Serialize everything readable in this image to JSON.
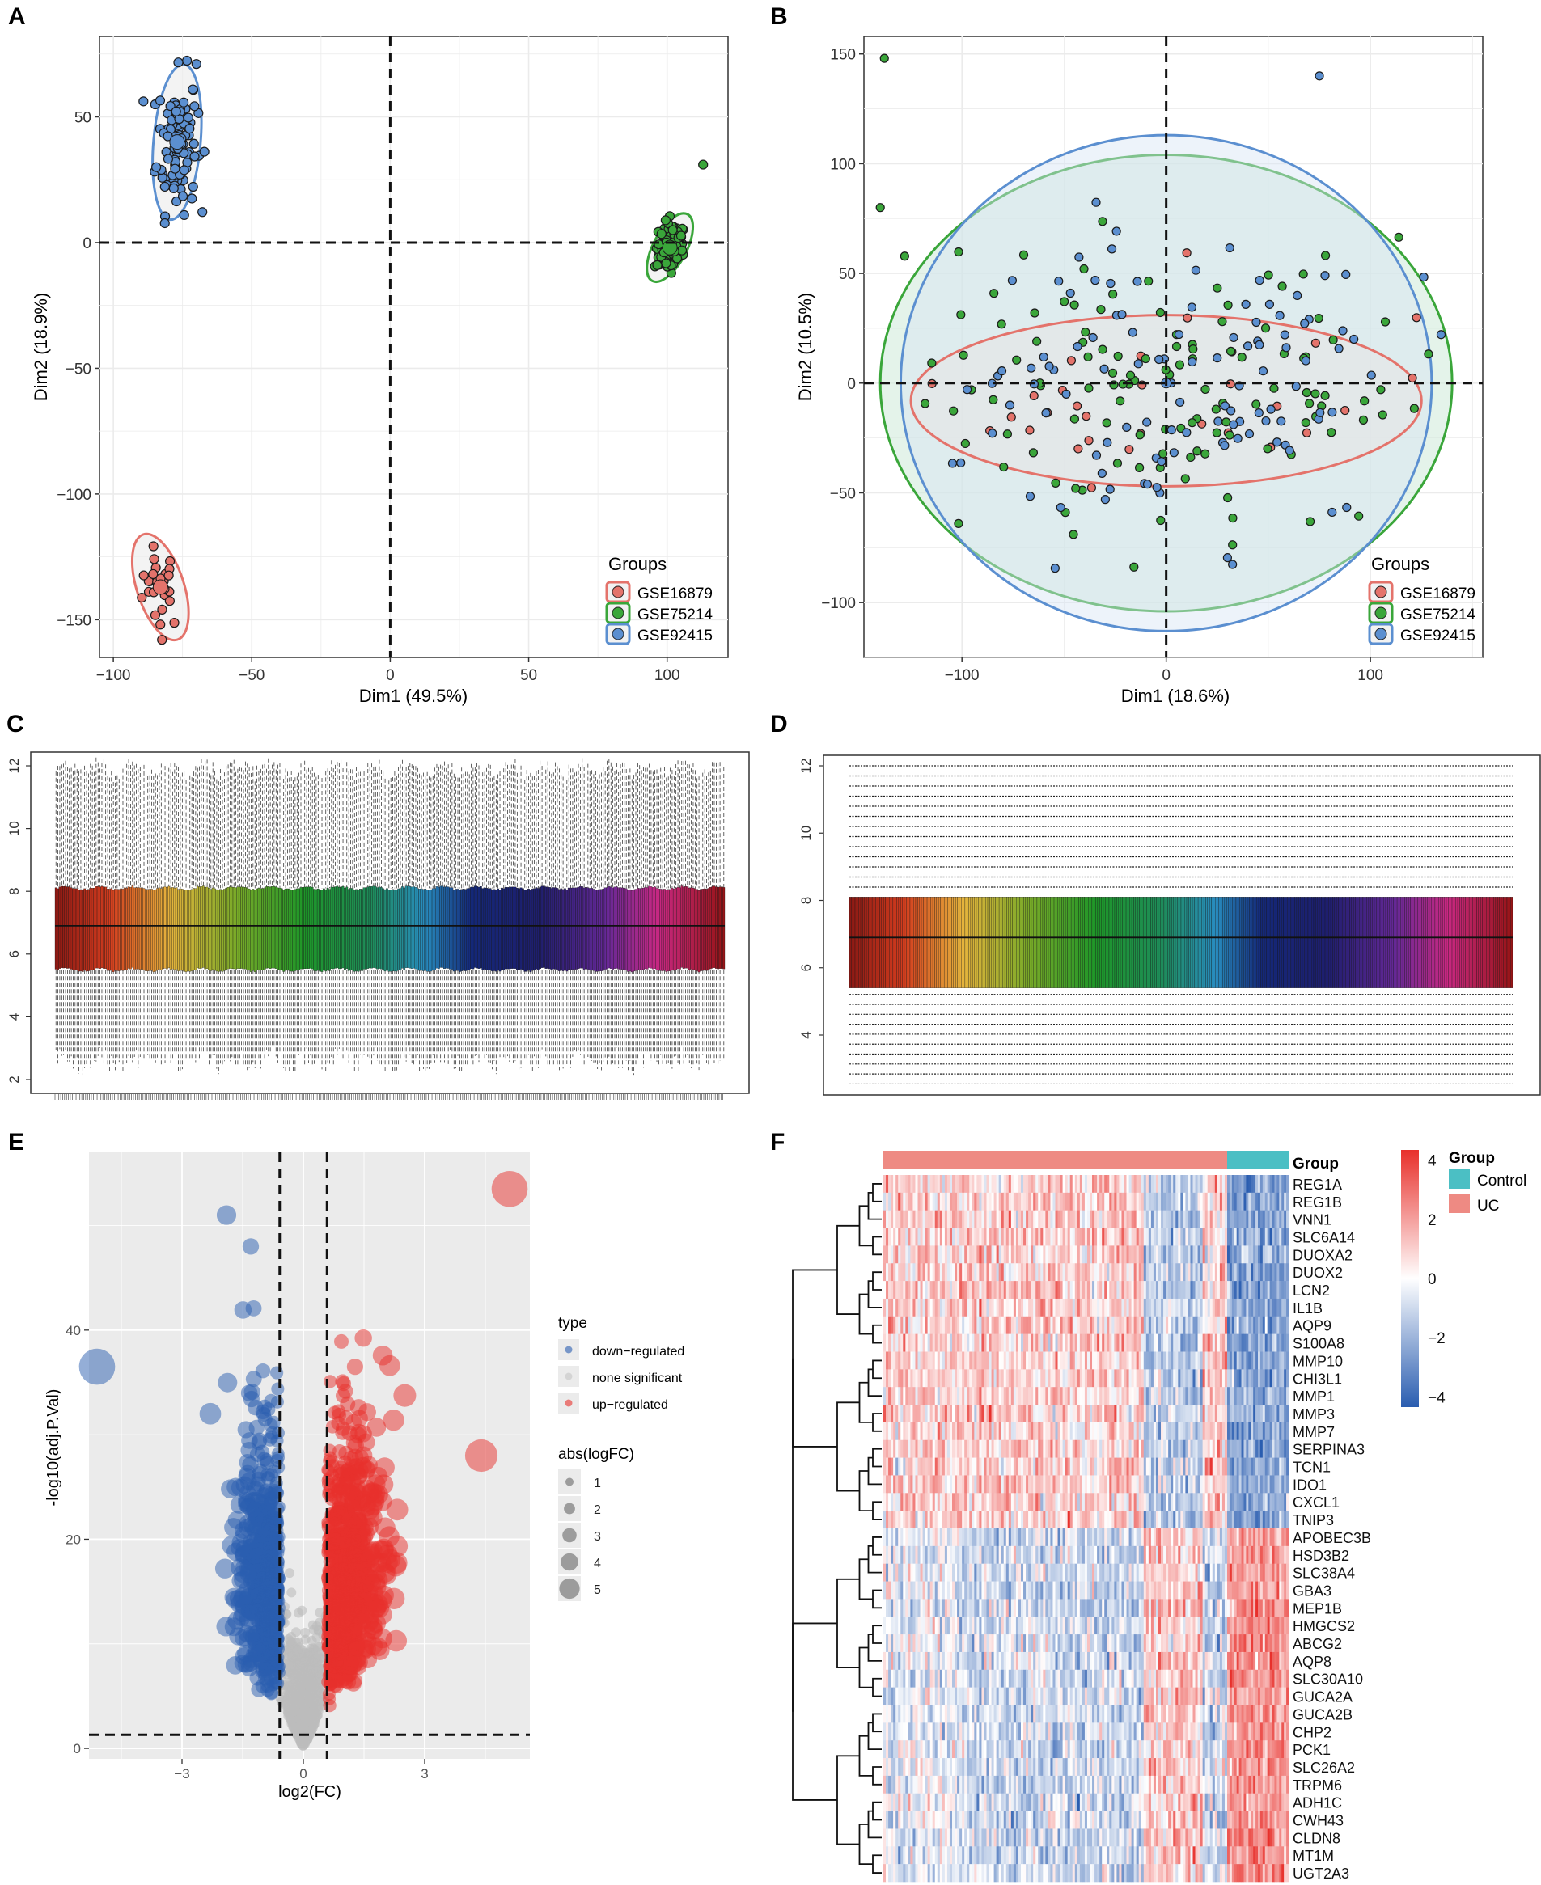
{
  "panels": {
    "A": {
      "letter": "A",
      "xlabel": "Dim1 (49.5%)",
      "ylabel": "Dim2 (18.9%)"
    },
    "B": {
      "letter": "B",
      "xlabel": "Dim1 (18.6%)",
      "ylabel": "Dim2 (10.5%)"
    },
    "C": {
      "letter": "C"
    },
    "D": {
      "letter": "D"
    },
    "E": {
      "letter": "E",
      "xlabel": "log2(FC)",
      "ylabel": "-log10(adj.P.Val)"
    },
    "F": {
      "letter": "F"
    }
  },
  "groups_legend": {
    "title": "Groups",
    "items": [
      "GSE16879",
      "GSE75214",
      "GSE92415"
    ]
  },
  "colors": {
    "GSE16879": "#e4736b",
    "GSE75214": "#3aa63a",
    "GSE92415": "#5b8fd0",
    "down": "#2a5db0",
    "none": "#bdbdbd",
    "up": "#e8302b",
    "control": "#4bbfc4",
    "uc": "#ee8a83",
    "hm_high": "#e8302b",
    "hm_mid": "#ffffff",
    "hm_low": "#2a5db0"
  },
  "chart_data": [
    {
      "id": "A",
      "type": "scatter",
      "title": "",
      "xlabel": "Dim1 (49.5%)",
      "ylabel": "Dim2 (18.9%)",
      "xlim": [
        -105,
        122
      ],
      "ylim": [
        -165,
        82
      ],
      "xticks": [
        -100,
        -50,
        0,
        50,
        100
      ],
      "yticks": [
        50,
        0,
        -50,
        -100,
        -150
      ],
      "series": [
        {
          "name": "GSE16879",
          "centroid": [
            -83,
            -137
          ],
          "spread": [
            4,
            8
          ],
          "n": 28
        },
        {
          "name": "GSE75214",
          "centroid": [
            101,
            -2
          ],
          "spread": [
            3,
            5
          ],
          "n": 90
        },
        {
          "name": "GSE92415",
          "centroid": [
            -77,
            40
          ],
          "spread": [
            4,
            14
          ],
          "n": 110
        }
      ]
    },
    {
      "id": "B",
      "type": "scatter",
      "xlabel": "Dim1 (18.6%)",
      "ylabel": "Dim2 (10.5%)",
      "xlim": [
        -148,
        155
      ],
      "ylim": [
        -125,
        158
      ],
      "xticks": [
        -100,
        0,
        100
      ],
      "yticks": [
        150,
        100,
        50,
        0,
        -50,
        -100
      ],
      "series": [
        {
          "name": "GSE16879",
          "centroid": [
            0,
            0
          ],
          "spread": [
            60,
            20
          ],
          "n": 30
        },
        {
          "name": "GSE75214",
          "centroid": [
            0,
            0
          ],
          "spread": [
            55,
            35
          ],
          "n": 120
        },
        {
          "name": "GSE92415",
          "centroid": [
            0,
            0
          ],
          "spread": [
            55,
            35
          ],
          "n": 110
        }
      ],
      "outliers": [
        [
          -138,
          148
        ],
        [
          -140,
          80
        ],
        [
          75,
          140
        ]
      ]
    },
    {
      "id": "C",
      "type": "boxplot",
      "yticks": [
        2,
        4,
        6,
        8,
        10,
        12
      ],
      "ylim": [
        1.5,
        12.5
      ],
      "n_samples": 350,
      "median": 6.9,
      "q1": 5.5,
      "q3": 8.1,
      "whisker_low": 2.3,
      "whisker_high": 12.1
    },
    {
      "id": "D",
      "type": "boxplot",
      "yticks": [
        4,
        6,
        8,
        10,
        12
      ],
      "ylim": [
        2.6,
        12.6
      ],
      "n_samples": 350,
      "median": 6.9,
      "q1": 5.4,
      "q3": 8.1
    },
    {
      "id": "E",
      "type": "scatter",
      "xlabel": "log2(FC)",
      "ylabel": "-log10(adj.P.Val)",
      "xlim": [
        -5.3,
        5.6
      ],
      "ylim": [
        -1,
        57
      ],
      "xticks": [
        -3,
        0,
        3
      ],
      "yticks": [
        0,
        20,
        40
      ],
      "thresholds": {
        "logfc": [
          -0.585,
          0.585
        ],
        "padj": 1.3
      },
      "legend_type": {
        "title": "type",
        "items": [
          "down−regulated",
          "none significant",
          "up−regulated"
        ]
      },
      "legend_size": {
        "title": "abs(logFC)",
        "items": [
          "1",
          "2",
          "3",
          "4",
          "5"
        ]
      },
      "highlights": [
        [
          5.1,
          53.5
        ],
        [
          -5.1,
          36.5
        ],
        [
          -1.9,
          51
        ],
        [
          -1.3,
          48
        ],
        [
          -2.3,
          32
        ],
        [
          4.4,
          28
        ]
      ]
    },
    {
      "id": "F",
      "type": "heatmap",
      "group_label": "Group",
      "legend": {
        "title": "Group",
        "items": [
          "Control",
          "UC"
        ]
      },
      "scale_ticks": [
        "4",
        "2",
        "0",
        "−2",
        "−4"
      ],
      "n_uc": 195,
      "n_control": 38,
      "rows": [
        "REG1A",
        "REG1B",
        "VNN1",
        "SLC6A14",
        "DUOXA2",
        "DUOX2",
        "LCN2",
        "IL1B",
        "AQP9",
        "S100A8",
        "MMP10",
        "CHI3L1",
        "MMP1",
        "MMP3",
        "MMP7",
        "SERPINA3",
        "TCN1",
        "IDO1",
        "CXCL1",
        "TNIP3",
        "APOBEC3B",
        "HSD3B2",
        "SLC38A4",
        "GBA3",
        "MEP1B",
        "HMGCS2",
        "ABCG2",
        "AQP8",
        "SLC30A10",
        "GUCA2A",
        "GUCA2B",
        "CHP2",
        "PCK1",
        "SLC26A2",
        "TRPM6",
        "ADH1C",
        "CWH43",
        "CLDN8",
        "MT1M",
        "UGT2A3"
      ]
    }
  ]
}
